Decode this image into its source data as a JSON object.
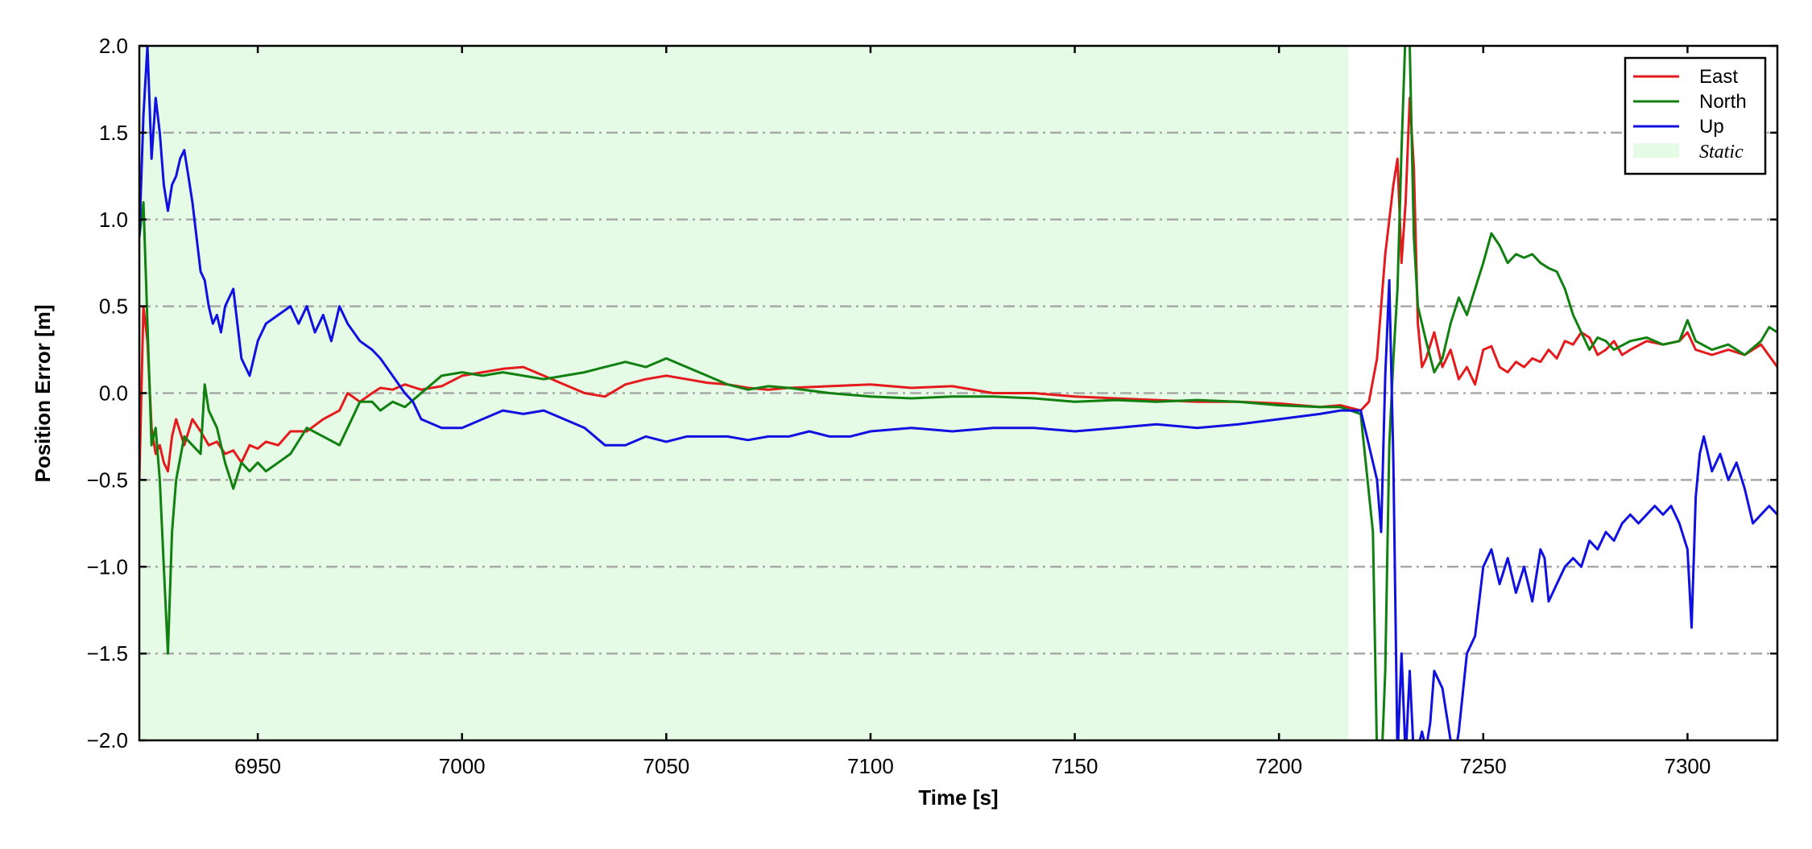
{
  "chart_data": {
    "type": "line",
    "xlabel": "Time [s]",
    "ylabel": "Position Error [m]",
    "xlim": [
      6921,
      7322
    ],
    "ylim": [
      -2.0,
      2.0
    ],
    "xticks": [
      6950,
      7000,
      7050,
      7100,
      7150,
      7200,
      7250,
      7300
    ],
    "xtick_labels": [
      "6950",
      "7000",
      "7050",
      "7100",
      "7150",
      "7200",
      "7250",
      "7300"
    ],
    "yticks": [
      -2.0,
      -1.5,
      -1.0,
      -0.5,
      0.0,
      0.5,
      1.0,
      1.5,
      2.0
    ],
    "ytick_labels": [
      "−2.0",
      "−1.5",
      "−1.0",
      "−0.5",
      "0.0",
      "0.5",
      "1.0",
      "1.5",
      "2.0"
    ],
    "grid": "horizontal dash-dot",
    "legend_position": "top-right",
    "static_span": {
      "label": "Static",
      "x": [
        6921,
        7217
      ],
      "color": "#e6fbe6"
    },
    "series": [
      {
        "name": "East",
        "color": "#e41a1c",
        "x": [
          6921,
          6922,
          6923,
          6924,
          6925,
          6926,
          6927,
          6928,
          6929,
          6930,
          6932,
          6934,
          6936,
          6938,
          6940,
          6942,
          6944,
          6946,
          6948,
          6950,
          6952,
          6955,
          6958,
          6962,
          6966,
          6970,
          6972,
          6975,
          6978,
          6980,
          6983,
          6986,
          6990,
          6995,
          7000,
          7005,
          7010,
          7015,
          7020,
          7025,
          7030,
          7035,
          7040,
          7045,
          7050,
          7055,
          7060,
          7065,
          7070,
          7075,
          7080,
          7090,
          7100,
          7110,
          7120,
          7130,
          7140,
          7150,
          7160,
          7170,
          7180,
          7190,
          7200,
          7210,
          7215,
          7220,
          7222,
          7224,
          7226,
          7228,
          7229,
          7230,
          7231,
          7232,
          7233,
          7234,
          7235,
          7236,
          7238,
          7240,
          7242,
          7244,
          7246,
          7248,
          7250,
          7252,
          7254,
          7256,
          7258,
          7260,
          7262,
          7264,
          7266,
          7268,
          7270,
          7272,
          7274,
          7276,
          7278,
          7280,
          7282,
          7284,
          7286,
          7290,
          7294,
          7298,
          7300,
          7302,
          7306,
          7310,
          7314,
          7318,
          7322
        ],
        "y": [
          -0.5,
          0.5,
          0.3,
          -0.2,
          -0.35,
          -0.3,
          -0.4,
          -0.45,
          -0.25,
          -0.15,
          -0.3,
          -0.15,
          -0.22,
          -0.3,
          -0.28,
          -0.35,
          -0.33,
          -0.4,
          -0.3,
          -0.32,
          -0.28,
          -0.3,
          -0.22,
          -0.22,
          -0.15,
          -0.1,
          0.0,
          -0.05,
          0.0,
          0.03,
          0.02,
          0.05,
          0.02,
          0.04,
          0.1,
          0.12,
          0.14,
          0.15,
          0.1,
          0.05,
          0.0,
          -0.02,
          0.05,
          0.08,
          0.1,
          0.08,
          0.06,
          0.05,
          0.03,
          0.02,
          0.03,
          0.04,
          0.05,
          0.03,
          0.04,
          0.0,
          0.0,
          -0.02,
          -0.03,
          -0.04,
          -0.05,
          -0.05,
          -0.06,
          -0.08,
          -0.07,
          -0.1,
          -0.05,
          0.2,
          0.8,
          1.2,
          1.35,
          0.75,
          1.1,
          1.7,
          1.3,
          0.4,
          0.15,
          0.2,
          0.35,
          0.15,
          0.25,
          0.08,
          0.15,
          0.05,
          0.25,
          0.27,
          0.15,
          0.12,
          0.18,
          0.15,
          0.2,
          0.18,
          0.25,
          0.2,
          0.3,
          0.28,
          0.35,
          0.32,
          0.22,
          0.25,
          0.3,
          0.22,
          0.25,
          0.3,
          0.28,
          0.3,
          0.35,
          0.25,
          0.22,
          0.25,
          0.22,
          0.28,
          0.15
        ]
      },
      {
        "name": "North",
        "color": "#108010",
        "x": [
          6921,
          6922,
          6923,
          6924,
          6925,
          6926,
          6927,
          6928,
          6929,
          6930,
          6932,
          6934,
          6936,
          6937,
          6938,
          6940,
          6942,
          6944,
          6946,
          6948,
          6950,
          6952,
          6955,
          6958,
          6962,
          6966,
          6970,
          6972,
          6975,
          6978,
          6980,
          6983,
          6986,
          6990,
          6995,
          7000,
          7005,
          7010,
          7015,
          7020,
          7025,
          7030,
          7035,
          7040,
          7045,
          7050,
          7055,
          7060,
          7065,
          7070,
          7075,
          7080,
          7090,
          7100,
          7110,
          7120,
          7130,
          7140,
          7150,
          7160,
          7170,
          7180,
          7190,
          7200,
          7210,
          7215,
          7220,
          7223,
          7224,
          7225,
          7226,
          7227,
          7228,
          7229,
          7230,
          7231,
          7232,
          7233,
          7234,
          7236,
          7238,
          7240,
          7242,
          7244,
          7246,
          7248,
          7250,
          7252,
          7254,
          7256,
          7258,
          7260,
          7262,
          7264,
          7266,
          7268,
          7270,
          7272,
          7274,
          7276,
          7278,
          7280,
          7282,
          7286,
          7290,
          7294,
          7298,
          7300,
          7302,
          7306,
          7310,
          7314,
          7318,
          7320,
          7322
        ],
        "y": [
          0.9,
          1.1,
          0.4,
          -0.3,
          -0.2,
          -0.5,
          -1.0,
          -1.5,
          -0.8,
          -0.5,
          -0.25,
          -0.3,
          -0.35,
          0.05,
          -0.1,
          -0.2,
          -0.4,
          -0.55,
          -0.4,
          -0.45,
          -0.4,
          -0.45,
          -0.4,
          -0.35,
          -0.2,
          -0.25,
          -0.3,
          -0.2,
          -0.05,
          -0.05,
          -0.1,
          -0.05,
          -0.08,
          0.0,
          0.1,
          0.12,
          0.1,
          0.12,
          0.1,
          0.08,
          0.1,
          0.12,
          0.15,
          0.18,
          0.15,
          0.2,
          0.15,
          0.1,
          0.05,
          0.02,
          0.04,
          0.03,
          0.0,
          -0.02,
          -0.03,
          -0.02,
          -0.02,
          -0.03,
          -0.05,
          -0.04,
          -0.05,
          -0.04,
          -0.05,
          -0.07,
          -0.08,
          -0.08,
          -0.12,
          -0.8,
          -2.1,
          -2.2,
          -1.6,
          -0.3,
          0.2,
          0.6,
          1.4,
          2.1,
          2.0,
          0.9,
          0.5,
          0.3,
          0.12,
          0.2,
          0.4,
          0.55,
          0.45,
          0.6,
          0.75,
          0.92,
          0.85,
          0.75,
          0.8,
          0.78,
          0.8,
          0.75,
          0.72,
          0.7,
          0.6,
          0.45,
          0.35,
          0.25,
          0.32,
          0.3,
          0.25,
          0.3,
          0.32,
          0.28,
          0.3,
          0.42,
          0.3,
          0.25,
          0.28,
          0.22,
          0.3,
          0.38,
          0.35
        ]
      },
      {
        "name": "Up",
        "color": "#1010e0",
        "x": [
          6921,
          6922,
          6923,
          6924,
          6925,
          6926,
          6927,
          6928,
          6929,
          6930,
          6931,
          6932,
          6933,
          6934,
          6935,
          6936,
          6937,
          6938,
          6939,
          6940,
          6941,
          6942,
          6944,
          6946,
          6948,
          6950,
          6952,
          6955,
          6958,
          6960,
          6962,
          6964,
          6966,
          6968,
          6970,
          6972,
          6975,
          6978,
          6980,
          6983,
          6986,
          6988,
          6990,
          6995,
          7000,
          7005,
          7010,
          7015,
          7020,
          7025,
          7030,
          7035,
          7040,
          7045,
          7050,
          7055,
          7060,
          7065,
          7070,
          7075,
          7080,
          7085,
          7090,
          7095,
          7100,
          7110,
          7120,
          7130,
          7140,
          7150,
          7160,
          7170,
          7180,
          7190,
          7200,
          7210,
          7215,
          7220,
          7222,
          7224,
          7225,
          7226,
          7227,
          7228,
          7229,
          7230,
          7231,
          7232,
          7233,
          7234,
          7235,
          7236,
          7237,
          7238,
          7240,
          7242,
          7243,
          7244,
          7246,
          7248,
          7250,
          7252,
          7254,
          7256,
          7258,
          7260,
          7262,
          7264,
          7265,
          7266,
          7268,
          7270,
          7272,
          7274,
          7276,
          7278,
          7280,
          7282,
          7284,
          7286,
          7288,
          7290,
          7292,
          7294,
          7296,
          7298,
          7300,
          7301,
          7302,
          7303,
          7304,
          7306,
          7308,
          7310,
          7312,
          7314,
          7316,
          7318,
          7320,
          7322
        ],
        "y": [
          0.9,
          1.6,
          2.0,
          1.35,
          1.7,
          1.5,
          1.2,
          1.05,
          1.2,
          1.25,
          1.35,
          1.4,
          1.25,
          1.1,
          0.9,
          0.7,
          0.65,
          0.5,
          0.4,
          0.45,
          0.35,
          0.5,
          0.6,
          0.2,
          0.1,
          0.3,
          0.4,
          0.45,
          0.5,
          0.4,
          0.5,
          0.35,
          0.45,
          0.3,
          0.5,
          0.4,
          0.3,
          0.25,
          0.2,
          0.1,
          0.0,
          -0.05,
          -0.15,
          -0.2,
          -0.2,
          -0.15,
          -0.1,
          -0.12,
          -0.1,
          -0.15,
          -0.2,
          -0.3,
          -0.3,
          -0.25,
          -0.28,
          -0.25,
          -0.25,
          -0.25,
          -0.27,
          -0.25,
          -0.25,
          -0.22,
          -0.25,
          -0.25,
          -0.22,
          -0.2,
          -0.22,
          -0.2,
          -0.2,
          -0.22,
          -0.2,
          -0.18,
          -0.2,
          -0.18,
          -0.15,
          -0.12,
          -0.1,
          -0.1,
          -0.3,
          -0.5,
          -0.8,
          0.1,
          0.65,
          -0.4,
          -2.1,
          -1.5,
          -2.1,
          -1.6,
          -2.1,
          -2.05,
          -1.95,
          -2.05,
          -1.9,
          -1.6,
          -1.7,
          -2.0,
          -2.1,
          -1.95,
          -1.5,
          -1.4,
          -1.0,
          -0.9,
          -1.1,
          -0.95,
          -1.15,
          -1.0,
          -1.2,
          -0.9,
          -0.95,
          -1.2,
          -1.1,
          -1.0,
          -0.95,
          -1.0,
          -0.85,
          -0.9,
          -0.8,
          -0.85,
          -0.75,
          -0.7,
          -0.75,
          -0.7,
          -0.65,
          -0.7,
          -0.65,
          -0.75,
          -0.9,
          -1.35,
          -0.6,
          -0.35,
          -0.25,
          -0.45,
          -0.35,
          -0.5,
          -0.4,
          -0.55,
          -0.75,
          -0.7,
          -0.65,
          -0.7
        ]
      }
    ]
  }
}
